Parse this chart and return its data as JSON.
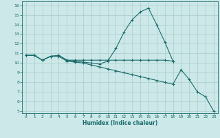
{
  "xlabel": "Humidex (Indice chaleur)",
  "bg_color": "#cce8e8",
  "grid_color": "#aacccc",
  "line_color": "#1a6b6b",
  "xlim": [
    -0.5,
    23.5
  ],
  "ylim": [
    4.8,
    16.4
  ],
  "xticks": [
    0,
    1,
    2,
    3,
    4,
    5,
    6,
    7,
    8,
    9,
    10,
    11,
    12,
    13,
    14,
    15,
    16,
    17,
    18,
    19,
    20,
    21,
    22,
    23
  ],
  "yticks": [
    5,
    6,
    7,
    8,
    9,
    10,
    11,
    12,
    13,
    14,
    15,
    16
  ],
  "line1_x": [
    0,
    1,
    2,
    3,
    4,
    5,
    6,
    7,
    8,
    9,
    10,
    11,
    12,
    13,
    14,
    15,
    16,
    17,
    18
  ],
  "line1_y": [
    10.8,
    10.8,
    10.3,
    10.7,
    10.8,
    10.3,
    10.2,
    10.1,
    10.0,
    9.9,
    10.2,
    11.5,
    13.2,
    14.5,
    15.3,
    15.7,
    14.0,
    12.2,
    10.2
  ],
  "line2_x": [
    0,
    1,
    2,
    3,
    4,
    5,
    6,
    7,
    8,
    9,
    10,
    11,
    12,
    13,
    14,
    15,
    16,
    17,
    18
  ],
  "line2_y": [
    10.8,
    10.8,
    10.3,
    10.7,
    10.8,
    10.3,
    10.3,
    10.3,
    10.3,
    10.3,
    10.3,
    10.3,
    10.3,
    10.3,
    10.3,
    10.3,
    10.3,
    10.3,
    10.2
  ],
  "line3_x": [
    0,
    1,
    2,
    3,
    4,
    5,
    6,
    7,
    8,
    9,
    10,
    11,
    12,
    13,
    14,
    15,
    16,
    17,
    18,
    19,
    20,
    21,
    22,
    23
  ],
  "line3_y": [
    10.8,
    10.8,
    10.3,
    10.7,
    10.7,
    10.2,
    10.1,
    10.0,
    9.8,
    9.6,
    9.4,
    9.2,
    9.0,
    8.8,
    8.6,
    8.4,
    8.2,
    8.0,
    7.8,
    9.3,
    8.3,
    7.0,
    6.5,
    5.0
  ]
}
